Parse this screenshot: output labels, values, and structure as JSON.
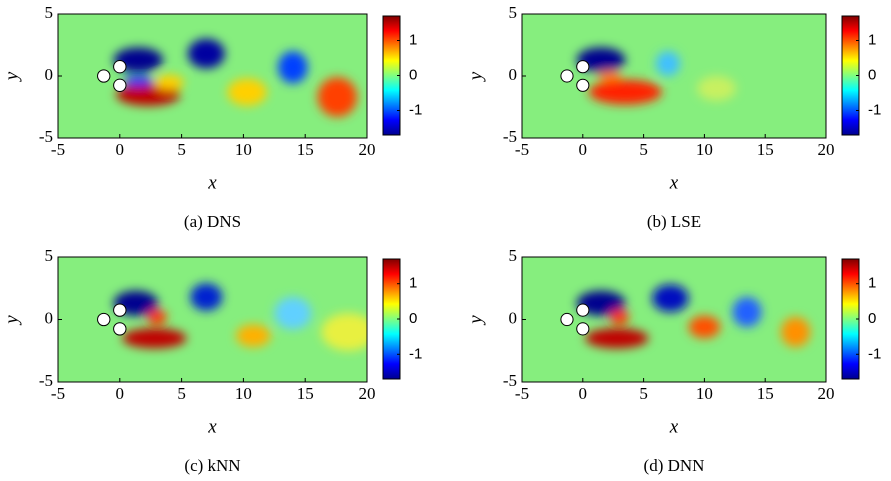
{
  "chart_data": [
    {
      "type": "heatmap",
      "caption": "(a) DNS",
      "x_label": "x",
      "y_label": "y",
      "xlim": [
        -5,
        20
      ],
      "xticks": [
        -5,
        0,
        5,
        10,
        15,
        20
      ],
      "ylim": [
        -5,
        5
      ],
      "yticks": [
        -5,
        0,
        5
      ],
      "colorbar": {
        "lim": [
          -1.7,
          1.7
        ],
        "ticks": [
          -1,
          0,
          1
        ]
      }
    },
    {
      "type": "heatmap",
      "caption": "(b) LSE",
      "x_label": "x",
      "y_label": "y",
      "xlim": [
        -5,
        20
      ],
      "xticks": [
        -5,
        0,
        5,
        10,
        15,
        20
      ],
      "ylim": [
        -5,
        5
      ],
      "yticks": [
        -5,
        0,
        5
      ],
      "colorbar": {
        "lim": [
          -1.7,
          1.7
        ],
        "ticks": [
          -1,
          0,
          1
        ]
      }
    },
    {
      "type": "heatmap",
      "caption": "(c) kNN",
      "x_label": "x",
      "y_label": "y",
      "xlim": [
        -5,
        20
      ],
      "xticks": [
        -5,
        0,
        5,
        10,
        15,
        20
      ],
      "ylim": [
        -5,
        5
      ],
      "yticks": [
        -5,
        0,
        5
      ],
      "colorbar": {
        "lim": [
          -1.7,
          1.7
        ],
        "ticks": [
          -1,
          0,
          1
        ]
      }
    },
    {
      "type": "heatmap",
      "caption": "(d) DNN",
      "x_label": "x",
      "y_label": "y",
      "xlim": [
        -5,
        20
      ],
      "xticks": [
        -5,
        0,
        5,
        10,
        15,
        20
      ],
      "ylim": [
        -5,
        5
      ],
      "yticks": [
        -5,
        0,
        5
      ],
      "colorbar": {
        "lim": [
          -1.7,
          1.7
        ],
        "ticks": [
          -1,
          0,
          1
        ]
      }
    }
  ]
}
